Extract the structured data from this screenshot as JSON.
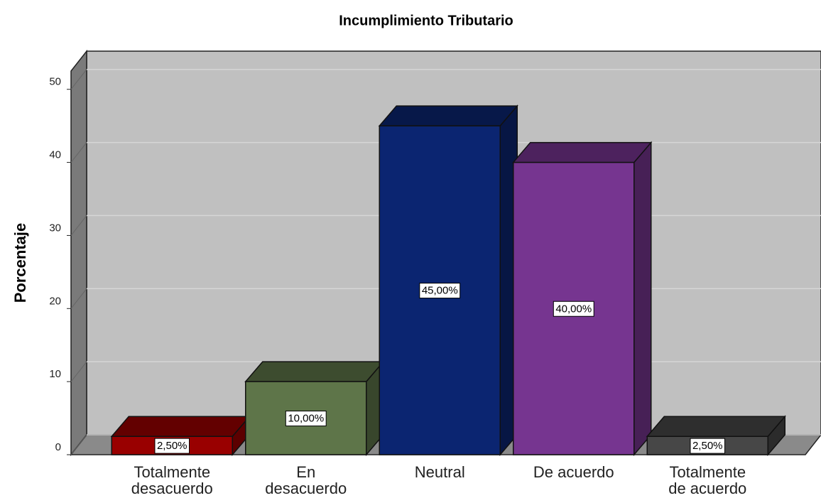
{
  "chart_data": {
    "type": "bar3d",
    "title": "Incumplimiento Tributario",
    "y_label": "Porcentaje",
    "categories": [
      "Totalmente desacuerdo",
      "En desacuerdo",
      "Neutral",
      "De acuerdo",
      "Totalmente de acuerdo"
    ],
    "values": [
      2.5,
      10,
      45,
      40,
      2.5
    ],
    "value_labels": [
      "2,50%",
      "10,00%",
      "45,00%",
      "40,00%",
      "2,50%"
    ],
    "colors": [
      "#990000",
      "#5e7549",
      "#0b2571",
      "#763590",
      "#474747"
    ],
    "ylim": [
      0,
      52.5
    ],
    "yticks": [
      0,
      10,
      20,
      30,
      40,
      50
    ],
    "grid": true
  }
}
